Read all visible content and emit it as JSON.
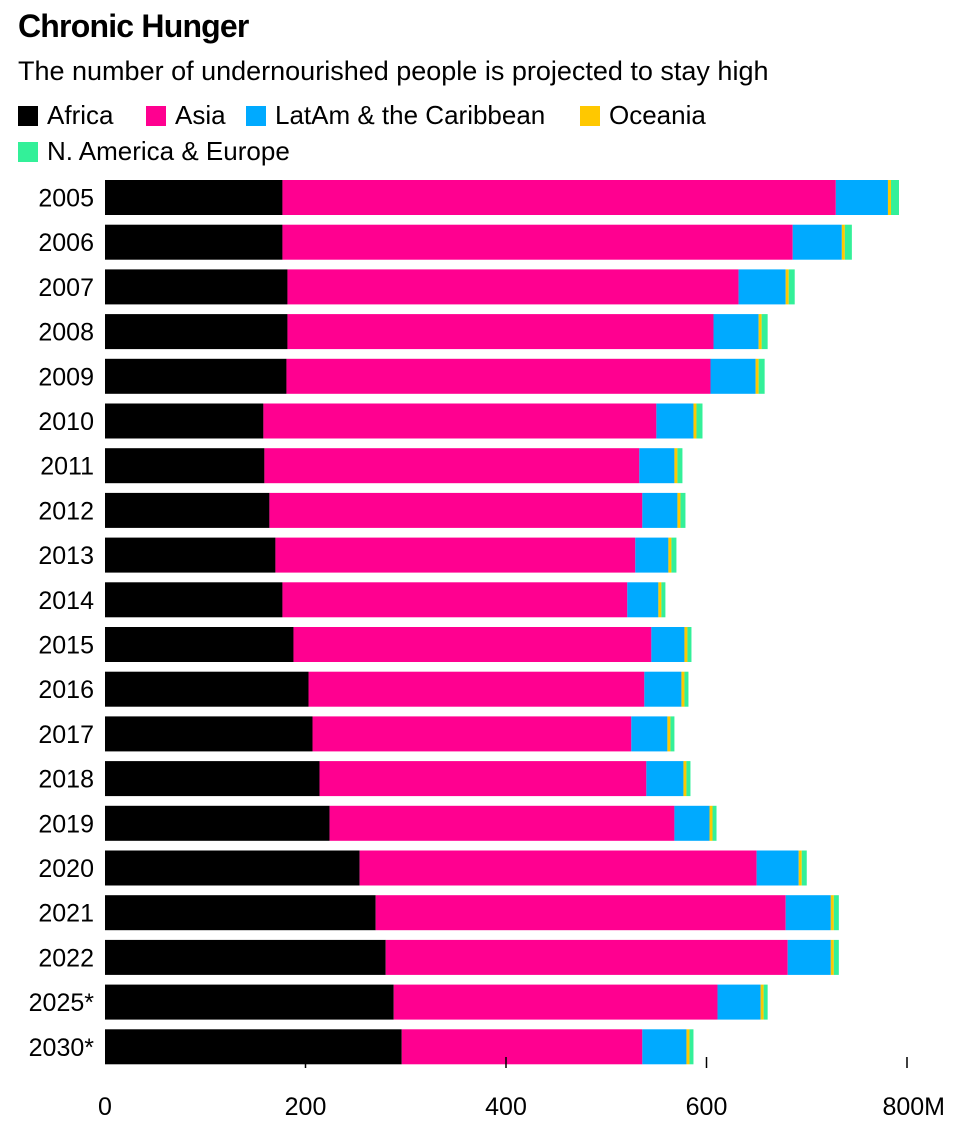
{
  "title": "Chronic Hunger",
  "subtitle": "The number of undernourished people is projected to stay high",
  "legend": [
    {
      "label": "Africa",
      "color": "#000000"
    },
    {
      "label": "Asia",
      "color": "#ff0090"
    },
    {
      "label": "LatAm & the Caribbean",
      "color": "#00aaff"
    },
    {
      "label": "Oceania",
      "color": "#ffc800"
    },
    {
      "label": "N. America & Europe",
      "color": "#33f099"
    }
  ],
  "chart_data": {
    "type": "bar",
    "orientation": "horizontal",
    "stacked": true,
    "title": "Chronic Hunger",
    "subtitle": "The number of undernourished people is projected to stay high",
    "categories": [
      "2005",
      "2006",
      "2007",
      "2008",
      "2009",
      "2010",
      "2011",
      "2012",
      "2013",
      "2014",
      "2015",
      "2016",
      "2017",
      "2018",
      "2019",
      "2020",
      "2021",
      "2022",
      "2025*",
      "2030*"
    ],
    "series": [
      {
        "name": "Africa",
        "color": "#000000",
        "values": [
          177,
          177,
          182,
          182,
          181,
          158,
          159,
          164,
          170,
          177,
          188,
          203,
          207,
          214,
          224,
          254,
          270,
          280,
          288,
          296
        ]
      },
      {
        "name": "Asia",
        "color": "#ff0090",
        "values": [
          552,
          509,
          450,
          425,
          423,
          392,
          374,
          372,
          359,
          344,
          357,
          335,
          318,
          326,
          344,
          396,
          409,
          401,
          323,
          240
        ]
      },
      {
        "name": "LatAm & the Caribbean",
        "color": "#00aaff",
        "values": [
          52,
          49,
          47,
          45,
          45,
          37,
          35,
          35,
          33,
          31,
          33,
          37,
          36,
          37,
          35,
          42,
          45,
          43,
          43,
          44
        ]
      },
      {
        "name": "Oceania",
        "color": "#ffc800",
        "values": [
          3,
          3,
          3,
          3,
          3,
          3,
          3,
          3,
          3,
          3,
          3,
          3,
          3,
          3,
          3,
          3,
          3,
          3,
          3,
          3
        ]
      },
      {
        "name": "N. America & Europe",
        "color": "#33f099",
        "values": [
          8,
          7,
          6,
          6,
          6,
          6,
          5,
          5,
          5,
          4,
          4,
          4,
          4,
          4,
          4,
          5,
          5,
          5,
          4,
          4
        ]
      }
    ],
    "xlim": [
      0,
      800
    ],
    "xticks": [
      0,
      200,
      400,
      600,
      800
    ],
    "xtick_labels": [
      "0",
      "200",
      "400",
      "600",
      "800M"
    ],
    "xlabel": "",
    "ylabel": "",
    "grid": false
  }
}
